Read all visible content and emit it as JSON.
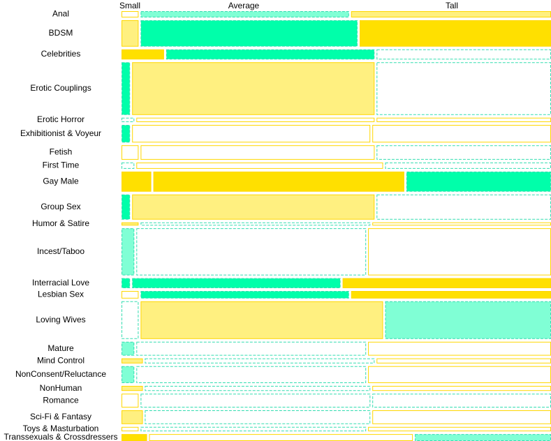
{
  "chart_data": {
    "type": "mosaic",
    "title": "",
    "xlabel": "",
    "ylabel": "",
    "columns": [
      "Small",
      "Average",
      "Tall"
    ],
    "colors": {
      "strong_yellow": "#FFE000",
      "pale_yellow": "#FFF080",
      "strong_green": "#00FFAA",
      "pale_green": "#80FFD5",
      "yellow_outline": "#FFD700",
      "green_outline": "#33DDB0"
    },
    "rows": [
      {
        "label": "Anal",
        "weight": 1.0,
        "cells": [
          {
            "share": 0.04,
            "fill": "none",
            "hue": "yellow"
          },
          {
            "share": 0.49,
            "fill": "pale",
            "hue": "green"
          },
          {
            "share": 0.47,
            "fill": "pale",
            "hue": "yellow"
          }
        ]
      },
      {
        "label": "BDSM",
        "weight": 4.2,
        "cells": [
          {
            "share": 0.04,
            "fill": "pale",
            "hue": "yellow"
          },
          {
            "share": 0.51,
            "fill": "strong",
            "hue": "green"
          },
          {
            "share": 0.45,
            "fill": "strong",
            "hue": "yellow"
          }
        ]
      },
      {
        "label": "Celebrities",
        "weight": 1.6,
        "cells": [
          {
            "share": 0.1,
            "fill": "strong",
            "hue": "yellow"
          },
          {
            "share": 0.49,
            "fill": "strong",
            "hue": "green"
          },
          {
            "share": 0.41,
            "fill": "none",
            "hue": "green"
          }
        ]
      },
      {
        "label": "Erotic Couplings",
        "weight": 8.4,
        "cells": [
          {
            "share": 0.02,
            "fill": "strong",
            "hue": "green"
          },
          {
            "share": 0.57,
            "fill": "pale",
            "hue": "yellow"
          },
          {
            "share": 0.41,
            "fill": "none",
            "hue": "green"
          }
        ]
      },
      {
        "label": "Erotic Horror",
        "weight": 0.7,
        "cells": [
          {
            "share": 0.03,
            "fill": "none",
            "hue": "green"
          },
          {
            "share": 0.56,
            "fill": "none",
            "hue": "yellow"
          },
          {
            "share": 0.41,
            "fill": "none",
            "hue": "yellow"
          }
        ]
      },
      {
        "label": "Exhibitionist & Voyeur",
        "weight": 2.8,
        "cells": [
          {
            "share": 0.02,
            "fill": "strong",
            "hue": "green"
          },
          {
            "share": 0.56,
            "fill": "none",
            "hue": "yellow"
          },
          {
            "share": 0.42,
            "fill": "none",
            "hue": "yellow"
          }
        ]
      },
      {
        "label": "Fetish",
        "weight": 2.3,
        "cells": [
          {
            "share": 0.04,
            "fill": "none",
            "hue": "yellow"
          },
          {
            "share": 0.55,
            "fill": "none",
            "hue": "yellow"
          },
          {
            "share": 0.41,
            "fill": "none",
            "hue": "green"
          }
        ]
      },
      {
        "label": "First Time",
        "weight": 1.0,
        "cells": [
          {
            "share": 0.03,
            "fill": "none",
            "hue": "green"
          },
          {
            "share": 0.58,
            "fill": "none",
            "hue": "yellow"
          },
          {
            "share": 0.39,
            "fill": "none",
            "hue": "green"
          }
        ]
      },
      {
        "label": "Gay Male",
        "weight": 3.2,
        "cells": [
          {
            "share": 0.07,
            "fill": "strong",
            "hue": "yellow"
          },
          {
            "share": 0.59,
            "fill": "strong",
            "hue": "yellow"
          },
          {
            "share": 0.34,
            "fill": "strong",
            "hue": "green"
          }
        ]
      },
      {
        "label": "Group Sex",
        "weight": 4.0,
        "cells": [
          {
            "share": 0.02,
            "fill": "strong",
            "hue": "green"
          },
          {
            "share": 0.57,
            "fill": "pale",
            "hue": "yellow"
          },
          {
            "share": 0.41,
            "fill": "none",
            "hue": "green"
          }
        ]
      },
      {
        "label": "Humor & Satire",
        "weight": 0.5,
        "cells": [
          {
            "share": 0.04,
            "fill": "pale",
            "hue": "yellow"
          },
          {
            "share": 0.54,
            "fill": "none",
            "hue": "green"
          },
          {
            "share": 0.42,
            "fill": "none",
            "hue": "yellow"
          }
        ]
      },
      {
        "label": "Incest/Taboo",
        "weight": 7.5,
        "cells": [
          {
            "share": 0.03,
            "fill": "pale",
            "hue": "green"
          },
          {
            "share": 0.54,
            "fill": "none",
            "hue": "green"
          },
          {
            "share": 0.43,
            "fill": "none",
            "hue": "yellow"
          }
        ]
      },
      {
        "label": "Interracial Love",
        "weight": 1.6,
        "cells": [
          {
            "share": 0.02,
            "fill": "strong",
            "hue": "green"
          },
          {
            "share": 0.49,
            "fill": "strong",
            "hue": "green"
          },
          {
            "share": 0.49,
            "fill": "strong",
            "hue": "yellow"
          }
        ]
      },
      {
        "label": "Lesbian Sex",
        "weight": 1.2,
        "cells": [
          {
            "share": 0.04,
            "fill": "none",
            "hue": "yellow"
          },
          {
            "share": 0.49,
            "fill": "strong",
            "hue": "green"
          },
          {
            "share": 0.47,
            "fill": "strong",
            "hue": "yellow"
          }
        ]
      },
      {
        "label": "Loving Wives",
        "weight": 6.0,
        "cells": [
          {
            "share": 0.04,
            "fill": "none",
            "hue": "green"
          },
          {
            "share": 0.57,
            "fill": "pale",
            "hue": "yellow"
          },
          {
            "share": 0.39,
            "fill": "pale",
            "hue": "green"
          }
        ]
      },
      {
        "label": "Mature",
        "weight": 2.2,
        "cells": [
          {
            "share": 0.03,
            "fill": "pale",
            "hue": "green"
          },
          {
            "share": 0.54,
            "fill": "none",
            "hue": "green"
          },
          {
            "share": 0.43,
            "fill": "none",
            "hue": "yellow"
          }
        ]
      },
      {
        "label": "Mind Control",
        "weight": 0.8,
        "cells": [
          {
            "share": 0.05,
            "fill": "pale",
            "hue": "yellow"
          },
          {
            "share": 0.54,
            "fill": "none",
            "hue": "green"
          },
          {
            "share": 0.41,
            "fill": "none",
            "hue": "yellow"
          }
        ]
      },
      {
        "label": "NonConsent/Reluctance",
        "weight": 2.7,
        "cells": [
          {
            "share": 0.03,
            "fill": "pale",
            "hue": "green"
          },
          {
            "share": 0.54,
            "fill": "none",
            "hue": "green"
          },
          {
            "share": 0.43,
            "fill": "none",
            "hue": "yellow"
          }
        ]
      },
      {
        "label": "NonHuman",
        "weight": 0.8,
        "cells": [
          {
            "share": 0.05,
            "fill": "pale",
            "hue": "yellow"
          },
          {
            "share": 0.53,
            "fill": "none",
            "hue": "green"
          },
          {
            "share": 0.42,
            "fill": "none",
            "hue": "yellow"
          }
        ]
      },
      {
        "label": "Romance",
        "weight": 2.2,
        "cells": [
          {
            "share": 0.04,
            "fill": "none",
            "hue": "yellow"
          },
          {
            "share": 0.54,
            "fill": "none",
            "hue": "green"
          },
          {
            "share": 0.42,
            "fill": "none",
            "hue": "green"
          }
        ]
      },
      {
        "label": "Sci-Fi & Fantasy",
        "weight": 2.2,
        "cells": [
          {
            "share": 0.05,
            "fill": "pale",
            "hue": "yellow"
          },
          {
            "share": 0.53,
            "fill": "none",
            "hue": "green"
          },
          {
            "share": 0.42,
            "fill": "none",
            "hue": "yellow"
          }
        ]
      },
      {
        "label": "Toys & Masturbation",
        "weight": 0.7,
        "cells": [
          {
            "share": 0.04,
            "fill": "none",
            "hue": "yellow"
          },
          {
            "share": 0.53,
            "fill": "none",
            "hue": "green"
          },
          {
            "share": 0.43,
            "fill": "none",
            "hue": "yellow"
          }
        ]
      },
      {
        "label": "Transsexuals & Crossdressers",
        "weight": 1.1,
        "cells": [
          {
            "share": 0.06,
            "fill": "strong",
            "hue": "yellow"
          },
          {
            "share": 0.62,
            "fill": "none",
            "hue": "yellow"
          },
          {
            "share": 0.32,
            "fill": "pale",
            "hue": "green"
          }
        ]
      }
    ]
  }
}
